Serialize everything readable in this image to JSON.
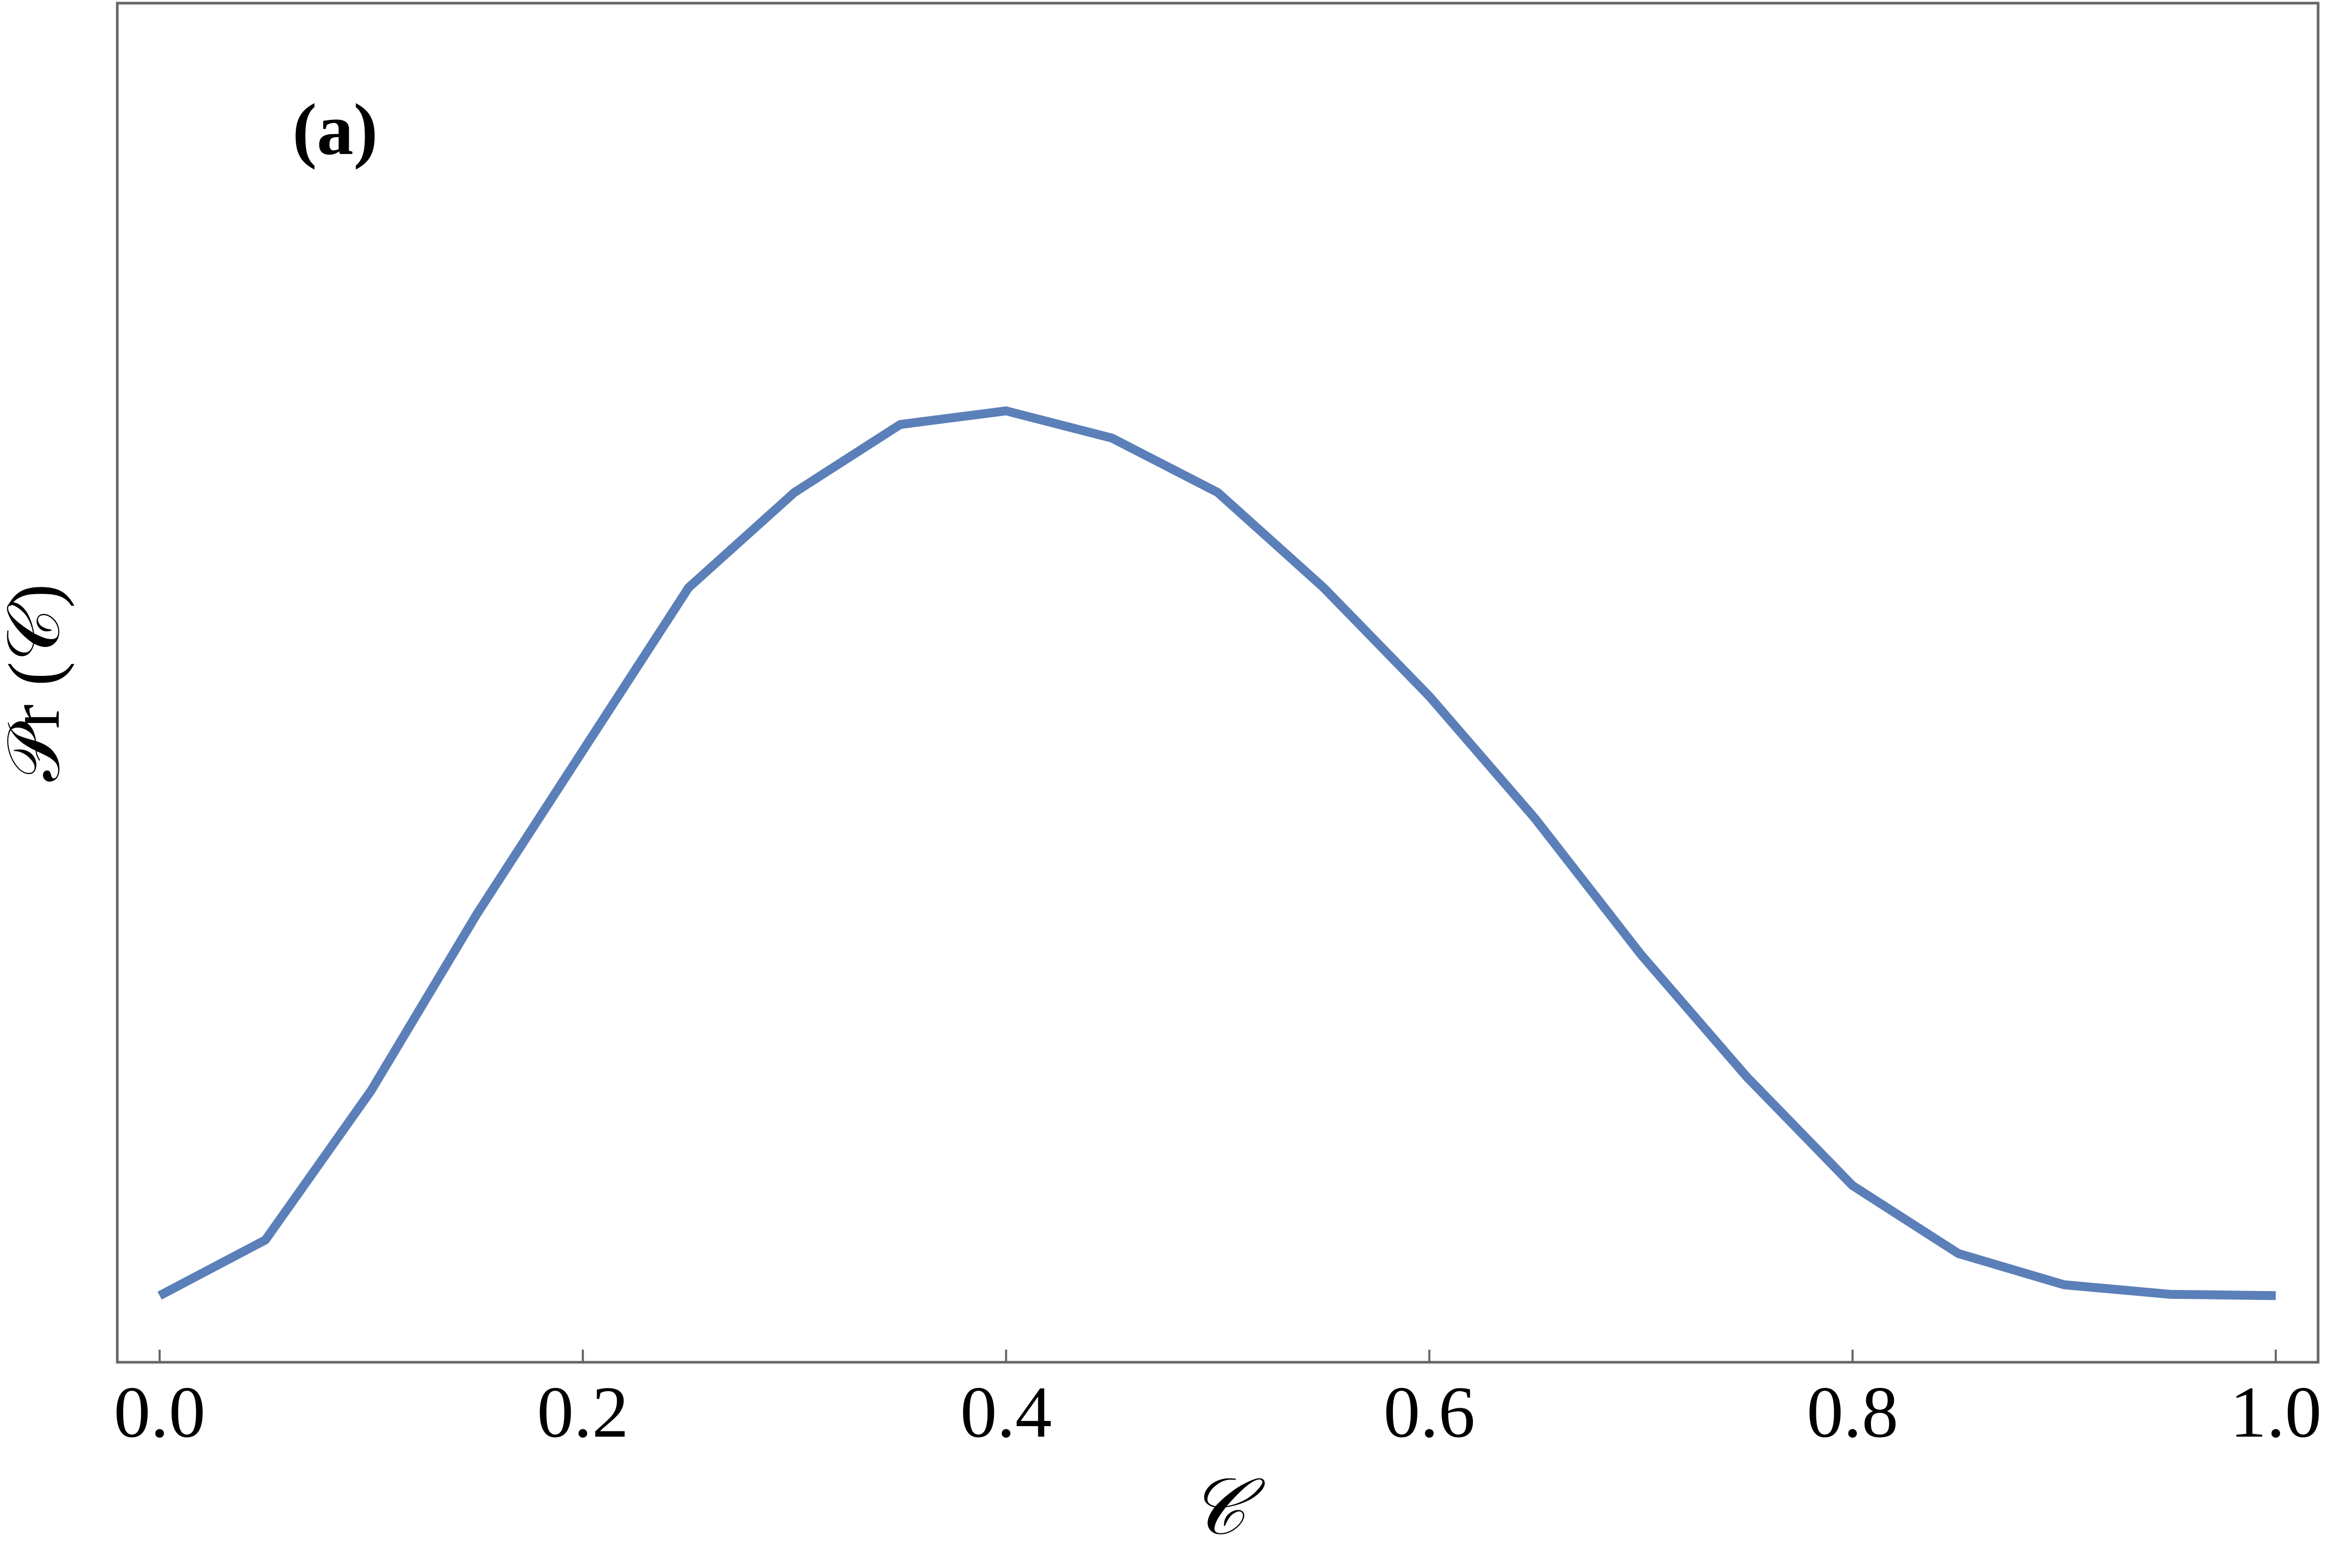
{
  "chart_data": {
    "type": "line",
    "annotation": "(a)",
    "xlabel": "𝒞",
    "ylabel": "𝒫r (𝒞)",
    "x": [
      0,
      0.05,
      0.1,
      0.15,
      0.2,
      0.25,
      0.3,
      0.35,
      0.4,
      0.45,
      0.5,
      0.55,
      0.6,
      0.65,
      0.7,
      0.75,
      0.8,
      0.85,
      0.9,
      0.95,
      1.0
    ],
    "series": [
      {
        "color": "#5b7fb8",
        "values": [
          0.049,
          0.09,
          0.2,
          0.33,
          0.45,
          0.57,
          0.64,
          0.69,
          0.7,
          0.68,
          0.64,
          0.57,
          0.49,
          0.4,
          0.3,
          0.21,
          0.13,
          0.08,
          0.057,
          0.05,
          0.049
        ]
      }
    ],
    "xlim": [
      -0.02,
      1.02
    ],
    "ylim": [
      0,
      1
    ],
    "xticks": [
      {
        "value": 0,
        "label": "0.0"
      },
      0.2,
      0.4,
      0.6,
      0.8,
      {
        "value": 1,
        "label": "1.0"
      }
    ],
    "grid": false
  }
}
